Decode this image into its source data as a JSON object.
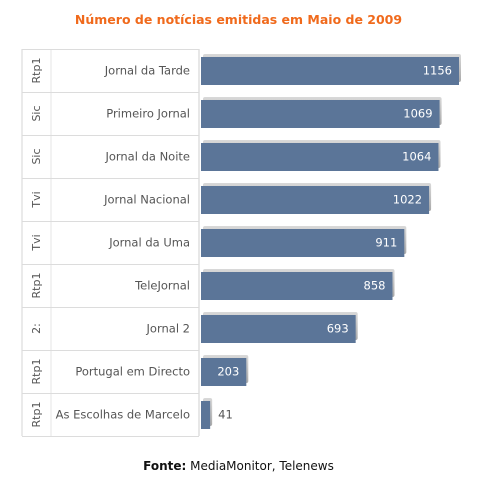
{
  "chart_data": {
    "type": "bar",
    "orientation": "horizontal",
    "title": "Número de notícias emitidas em Maio de 2009",
    "categories": [
      {
        "group": "Rtp1",
        "label": "Jornal da Tarde"
      },
      {
        "group": "Sic",
        "label": "Primeiro Jornal"
      },
      {
        "group": "Sic",
        "label": "Jornal da Noite"
      },
      {
        "group": "Tvi",
        "label": "Jornal Nacional"
      },
      {
        "group": "Tvi",
        "label": "Jornal da Uma"
      },
      {
        "group": "Rtp1",
        "label": "TeleJornal"
      },
      {
        "group": "2:",
        "label": "Jornal 2"
      },
      {
        "group": "Rtp1",
        "label": "Portugal em Directo"
      },
      {
        "group": "Rtp1",
        "label": "As Escolhas de Marcelo"
      }
    ],
    "values": [
      1156,
      1069,
      1064,
      1022,
      911,
      858,
      693,
      203,
      41
    ],
    "xlim": [
      0,
      1156
    ],
    "grid": false,
    "bar_color": "#5b7598"
  },
  "source": {
    "label": "Fonte:",
    "text": " MediaMonitor, Telenews"
  }
}
